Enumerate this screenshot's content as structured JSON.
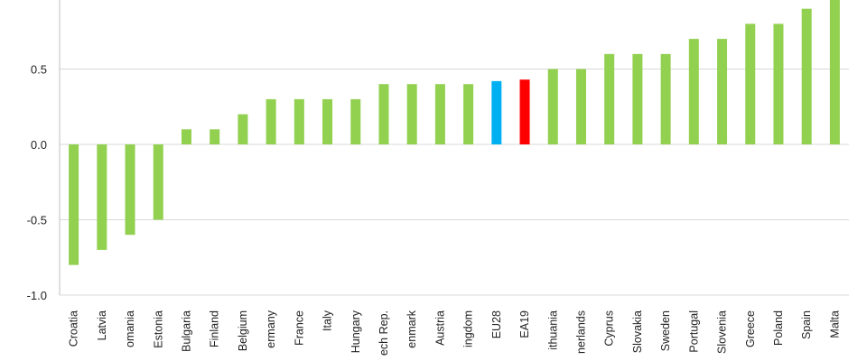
{
  "chart_data": {
    "type": "bar",
    "title": "",
    "xlabel": "",
    "ylabel": "",
    "ylim": [
      -1.0,
      1.0
    ],
    "yticks": [
      -1.0,
      -0.5,
      0.0,
      0.5
    ],
    "ytick_labels": [
      "-1.0",
      "-0.5",
      "0.0",
      "0.5"
    ],
    "grid": true,
    "legend": "none",
    "colors": {
      "default": "#92d050",
      "eu28": "#00b0f0",
      "ea19": "#ff0000",
      "grid": "#d9d9d9",
      "axis": "#bfbfbf"
    },
    "categories": [
      "Croatia",
      "Latvia",
      "omania",
      "Estonia",
      "Bulgaria",
      "Finland",
      "Belgium",
      "ermany",
      "France",
      "Italy",
      "Hungary",
      "ech Rep.",
      "enmark",
      "Austria",
      "ingdom",
      "EU28",
      "EA19",
      "ithuania",
      "nerlands",
      "Cyprus",
      "Slovakia",
      "Sweden",
      "Portugal",
      "Slovenia",
      "Greece",
      "Poland",
      "Spain",
      "Malta"
    ],
    "values": [
      -0.8,
      -0.7,
      -0.6,
      -0.5,
      0.1,
      0.1,
      0.2,
      0.3,
      0.3,
      0.3,
      0.3,
      0.4,
      0.4,
      0.4,
      0.4,
      0.42,
      0.43,
      0.5,
      0.5,
      0.6,
      0.6,
      0.6,
      0.7,
      0.7,
      0.8,
      0.8,
      0.9,
      1.0
    ],
    "bar_colors": [
      "default",
      "default",
      "default",
      "default",
      "default",
      "default",
      "default",
      "default",
      "default",
      "default",
      "default",
      "default",
      "default",
      "default",
      "default",
      "eu28",
      "ea19",
      "default",
      "default",
      "default",
      "default",
      "default",
      "default",
      "default",
      "default",
      "default",
      "default",
      "default"
    ]
  }
}
